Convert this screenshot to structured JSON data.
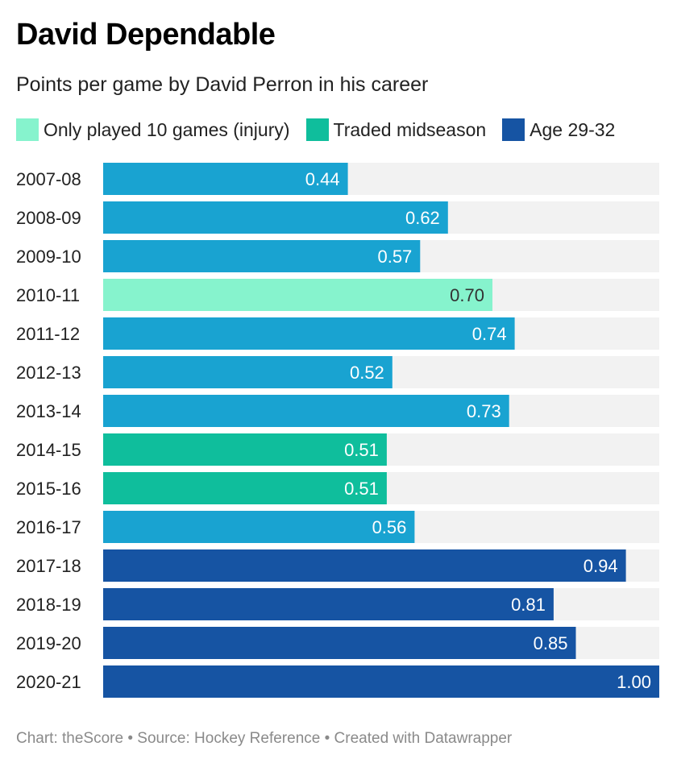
{
  "header": {
    "title": "David Dependable",
    "subtitle": "Points per game by David Perron in his career"
  },
  "legend": [
    {
      "label": "Only played 10 games (injury)",
      "color": "#86f3cd"
    },
    {
      "label": "Traded midseason",
      "color": "#0fbe9c"
    },
    {
      "label": "Age 29-32",
      "color": "#1654a3"
    }
  ],
  "footer": {
    "text": "Chart: theScore • Source: Hockey Reference • Created with Datawrapper"
  },
  "chart_data": {
    "type": "bar",
    "orientation": "horizontal",
    "title": "David Dependable",
    "subtitle": "Points per game by David Perron in his career",
    "xlim": [
      0,
      1.0
    ],
    "grid": false,
    "legend_position": "top",
    "default_color": "#19a3d1",
    "track_color": "#f2f2f2",
    "categories": [
      "2007-08",
      "2008-09",
      "2009-10",
      "2010-11",
      "2011-12",
      "2012-13",
      "2013-14",
      "2014-15",
      "2015-16",
      "2016-17",
      "2017-18",
      "2018-19",
      "2019-20",
      "2020-21"
    ],
    "values": [
      0.44,
      0.62,
      0.57,
      0.7,
      0.74,
      0.52,
      0.73,
      0.51,
      0.51,
      0.56,
      0.94,
      0.81,
      0.85,
      1.0
    ],
    "labels": [
      "0.44",
      "0.62",
      "0.57",
      "0.70",
      "0.74",
      "0.52",
      "0.73",
      "0.51",
      "0.51",
      "0.56",
      "0.94",
      "0.81",
      "0.85",
      "1.00"
    ],
    "colors": [
      "#19a3d1",
      "#19a3d1",
      "#19a3d1",
      "#86f3cd",
      "#19a3d1",
      "#19a3d1",
      "#19a3d1",
      "#0fbe9c",
      "#0fbe9c",
      "#19a3d1",
      "#1654a3",
      "#1654a3",
      "#1654a3",
      "#1654a3"
    ],
    "label_colors": [
      "#ffffff",
      "#ffffff",
      "#ffffff",
      "#333333",
      "#ffffff",
      "#ffffff",
      "#ffffff",
      "#ffffff",
      "#ffffff",
      "#ffffff",
      "#ffffff",
      "#ffffff",
      "#ffffff",
      "#ffffff"
    ]
  }
}
